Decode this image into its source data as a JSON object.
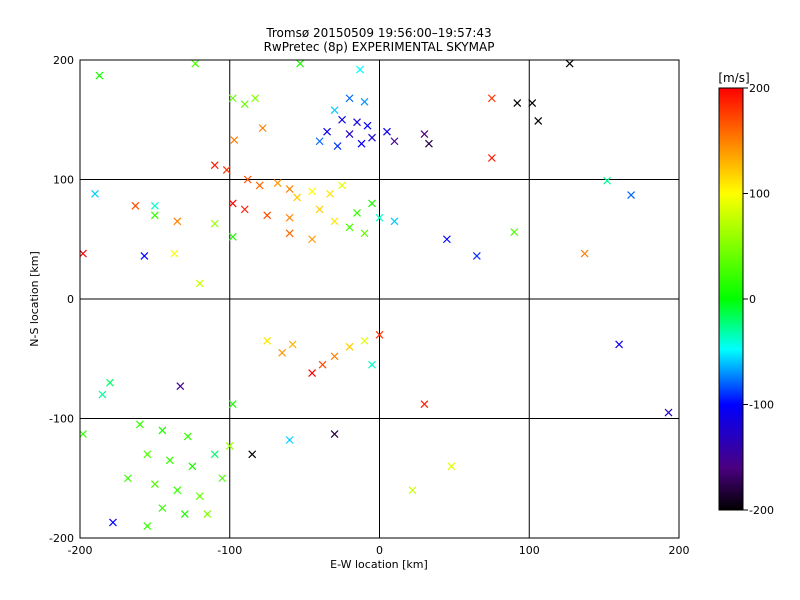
{
  "chart_data": {
    "type": "scatter",
    "title": "Tromsø 20150509 19:56:00–19:57:43",
    "subtitle": "RwPretec (8p) EXPERIMENTAL SKYMAP",
    "xlabel": "E-W location [km]",
    "ylabel": "N-S location [km]",
    "xlim": [
      -200,
      200
    ],
    "ylim": [
      -200,
      200
    ],
    "xticks": [
      -200,
      -100,
      0,
      100,
      200
    ],
    "yticks": [
      -200,
      -100,
      0,
      100,
      200
    ],
    "xtick_labels": [
      "-200",
      "-100",
      "0",
      "100",
      "200"
    ],
    "ytick_labels": [
      "-200",
      "-100",
      "0",
      "100",
      "200"
    ],
    "grid": true,
    "colorbar": {
      "label": "[m/s]",
      "range": [
        -200,
        200
      ],
      "ticks": [
        200,
        100,
        0,
        -100,
        -200
      ],
      "tick_labels": [
        "200",
        "100",
        "0",
        "-100",
        "-200"
      ],
      "colormap": "rainbow (black-purple-blue-cyan-green-yellow-red)"
    },
    "marker_legend": "large x = meteor detection, small dot = detection; color = radial velocity [m/s]",
    "series": [
      {
        "marker": "cross",
        "points": [
          {
            "x": -187,
            "y": 187,
            "v": 10
          },
          {
            "x": -123,
            "y": 197,
            "v": 30
          },
          {
            "x": -53,
            "y": 197,
            "v": 10
          },
          {
            "x": -13,
            "y": 192,
            "v": -50
          },
          {
            "x": 127,
            "y": 197,
            "v": -200
          },
          {
            "x": 92,
            "y": 164,
            "v": -200
          },
          {
            "x": 102,
            "y": 164,
            "v": -200
          },
          {
            "x": 106,
            "y": 149,
            "v": -200
          },
          {
            "x": 75,
            "y": 168,
            "v": 180
          },
          {
            "x": 75,
            "y": 118,
            "v": 190
          },
          {
            "x": -98,
            "y": 168,
            "v": 40
          },
          {
            "x": -83,
            "y": 168,
            "v": 50
          },
          {
            "x": -90,
            "y": 163,
            "v": 40
          },
          {
            "x": -97,
            "y": 133,
            "v": 150
          },
          {
            "x": -78,
            "y": 143,
            "v": 150
          },
          {
            "x": -20,
            "y": 168,
            "v": -80
          },
          {
            "x": -10,
            "y": 165,
            "v": -70
          },
          {
            "x": -30,
            "y": 158,
            "v": -60
          },
          {
            "x": -25,
            "y": 150,
            "v": -110
          },
          {
            "x": -15,
            "y": 148,
            "v": -120
          },
          {
            "x": -8,
            "y": 145,
            "v": -100
          },
          {
            "x": -35,
            "y": 140,
            "v": -110
          },
          {
            "x": -20,
            "y": 138,
            "v": -130
          },
          {
            "x": -5,
            "y": 135,
            "v": -120
          },
          {
            "x": -12,
            "y": 130,
            "v": -100
          },
          {
            "x": -28,
            "y": 128,
            "v": -90
          },
          {
            "x": -40,
            "y": 132,
            "v": -80
          },
          {
            "x": 5,
            "y": 140,
            "v": -110
          },
          {
            "x": 10,
            "y": 132,
            "v": -150
          },
          {
            "x": 30,
            "y": 138,
            "v": -160
          },
          {
            "x": 33,
            "y": 130,
            "v": -180
          },
          {
            "x": -110,
            "y": 112,
            "v": 190
          },
          {
            "x": -102,
            "y": 108,
            "v": 180
          },
          {
            "x": -88,
            "y": 100,
            "v": 170
          },
          {
            "x": -80,
            "y": 95,
            "v": 160
          },
          {
            "x": -68,
            "y": 97,
            "v": 140
          },
          {
            "x": -60,
            "y": 92,
            "v": 150
          },
          {
            "x": -55,
            "y": 85,
            "v": 120
          },
          {
            "x": -45,
            "y": 90,
            "v": 100
          },
          {
            "x": -33,
            "y": 88,
            "v": 110
          },
          {
            "x": -25,
            "y": 95,
            "v": 90
          },
          {
            "x": -98,
            "y": 80,
            "v": 200
          },
          {
            "x": -90,
            "y": 75,
            "v": 190
          },
          {
            "x": -75,
            "y": 70,
            "v": 170
          },
          {
            "x": -60,
            "y": 68,
            "v": 150
          },
          {
            "x": -40,
            "y": 75,
            "v": 120
          },
          {
            "x": -30,
            "y": 65,
            "v": 110
          },
          {
            "x": -20,
            "y": 60,
            "v": 30
          },
          {
            "x": -15,
            "y": 72,
            "v": 20
          },
          {
            "x": -10,
            "y": 55,
            "v": 40
          },
          {
            "x": -5,
            "y": 80,
            "v": 10
          },
          {
            "x": 0,
            "y": 68,
            "v": -40
          },
          {
            "x": 10,
            "y": 65,
            "v": -60
          },
          {
            "x": -60,
            "y": 55,
            "v": 160
          },
          {
            "x": -45,
            "y": 50,
            "v": 140
          },
          {
            "x": -190,
            "y": 88,
            "v": -60
          },
          {
            "x": -163,
            "y": 78,
            "v": 170
          },
          {
            "x": -150,
            "y": 78,
            "v": -40
          },
          {
            "x": -150,
            "y": 70,
            "v": 20
          },
          {
            "x": -135,
            "y": 65,
            "v": 150
          },
          {
            "x": -110,
            "y": 63,
            "v": 60
          },
          {
            "x": -98,
            "y": 52,
            "v": 10
          },
          {
            "x": -157,
            "y": 36,
            "v": -100
          },
          {
            "x": -137,
            "y": 38,
            "v": 100
          },
          {
            "x": -198,
            "y": 38,
            "v": 200
          },
          {
            "x": -120,
            "y": 13,
            "v": 80
          },
          {
            "x": 45,
            "y": 50,
            "v": -100
          },
          {
            "x": 65,
            "y": 36,
            "v": -90
          },
          {
            "x": 90,
            "y": 56,
            "v": 30
          },
          {
            "x": 137,
            "y": 38,
            "v": 150
          },
          {
            "x": 152,
            "y": 99,
            "v": -30
          },
          {
            "x": 168,
            "y": 87,
            "v": -80
          },
          {
            "x": 160,
            "y": -38,
            "v": -110
          },
          {
            "x": 193,
            "y": -95,
            "v": -130
          },
          {
            "x": -185,
            "y": -80,
            "v": -30
          },
          {
            "x": -180,
            "y": -70,
            "v": -20
          },
          {
            "x": -133,
            "y": -73,
            "v": -150
          },
          {
            "x": -65,
            "y": -45,
            "v": 140
          },
          {
            "x": -58,
            "y": -38,
            "v": 130
          },
          {
            "x": -75,
            "y": -35,
            "v": 110
          },
          {
            "x": -45,
            "y": -62,
            "v": 200
          },
          {
            "x": -38,
            "y": -55,
            "v": 170
          },
          {
            "x": -30,
            "y": -48,
            "v": 150
          },
          {
            "x": -20,
            "y": -40,
            "v": 120
          },
          {
            "x": -10,
            "y": -35,
            "v": 90
          },
          {
            "x": -5,
            "y": -55,
            "v": -40
          },
          {
            "x": 0,
            "y": -30,
            "v": 180
          },
          {
            "x": 30,
            "y": -88,
            "v": 190
          },
          {
            "x": -98,
            "y": -88,
            "v": 10
          },
          {
            "x": -160,
            "y": -105,
            "v": 20
          },
          {
            "x": -145,
            "y": -110,
            "v": 10
          },
          {
            "x": -128,
            "y": -115,
            "v": 20
          },
          {
            "x": -155,
            "y": -130,
            "v": 30
          },
          {
            "x": -140,
            "y": -135,
            "v": 20
          },
          {
            "x": -125,
            "y": -140,
            "v": 10
          },
          {
            "x": -110,
            "y": -130,
            "v": -20
          },
          {
            "x": -168,
            "y": -150,
            "v": 20
          },
          {
            "x": -150,
            "y": -155,
            "v": 30
          },
          {
            "x": -135,
            "y": -160,
            "v": 20
          },
          {
            "x": -120,
            "y": -165,
            "v": 40
          },
          {
            "x": -105,
            "y": -150,
            "v": 30
          },
          {
            "x": -145,
            "y": -175,
            "v": 20
          },
          {
            "x": -130,
            "y": -180,
            "v": 10
          },
          {
            "x": -115,
            "y": -180,
            "v": 50
          },
          {
            "x": -155,
            "y": -190,
            "v": 20
          },
          {
            "x": -178,
            "y": -187,
            "v": -100
          },
          {
            "x": -85,
            "y": -130,
            "v": -200
          },
          {
            "x": -30,
            "y": -113,
            "v": -180
          },
          {
            "x": -198,
            "y": -113,
            "v": 20
          },
          {
            "x": -100,
            "y": -123,
            "v": 60
          },
          {
            "x": -60,
            "y": -118,
            "v": -60
          },
          {
            "x": 48,
            "y": -140,
            "v": 90
          },
          {
            "x": 22,
            "y": -160,
            "v": 80
          }
        ]
      }
    ]
  }
}
